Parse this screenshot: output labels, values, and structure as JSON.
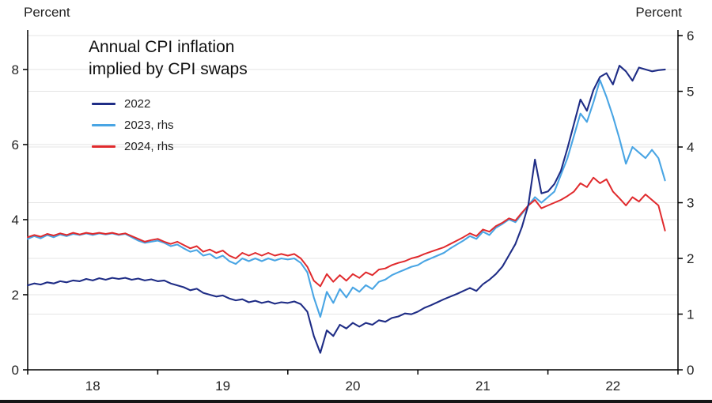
{
  "chart_data": {
    "type": "line",
    "title": "Annual CPI inflation implied by CPI swaps",
    "title_lines": [
      "Annual CPI inflation",
      "implied by CPI swaps"
    ],
    "left_axis": {
      "label": "Percent",
      "min": 0,
      "max": 9.05,
      "ticks": [
        0,
        2,
        4,
        6,
        8
      ]
    },
    "right_axis": {
      "label": "Percent",
      "min": 0,
      "max": 6.1,
      "ticks": [
        0,
        1,
        2,
        3,
        4,
        5,
        6
      ]
    },
    "x_axis": {
      "min": 2018.0,
      "max": 2023.0,
      "ticks": [
        2018,
        2019,
        2020,
        2021,
        2022,
        2023
      ],
      "labels": [
        {
          "text": "18",
          "x": 2018.5
        },
        {
          "text": "19",
          "x": 2019.5
        },
        {
          "text": "20",
          "x": 2020.5
        },
        {
          "text": "21",
          "x": 2021.5
        },
        {
          "text": "22",
          "x": 2022.5
        }
      ]
    },
    "gridlines": {
      "left_values": [
        2,
        4,
        6,
        8
      ],
      "right_values": [
        1,
        2,
        3,
        4,
        5,
        6
      ]
    },
    "x_start": 2018.0,
    "x_step": 0.05,
    "series": [
      {
        "name": "2022",
        "axis": "left",
        "color": "#1f2d86",
        "width": 2.1,
        "z": 3,
        "values": [
          2.25,
          2.3,
          2.27,
          2.33,
          2.3,
          2.36,
          2.33,
          2.38,
          2.36,
          2.42,
          2.38,
          2.44,
          2.4,
          2.45,
          2.42,
          2.45,
          2.4,
          2.43,
          2.38,
          2.41,
          2.36,
          2.38,
          2.3,
          2.25,
          2.2,
          2.12,
          2.16,
          2.05,
          2.0,
          1.95,
          1.98,
          1.9,
          1.85,
          1.88,
          1.8,
          1.84,
          1.78,
          1.82,
          1.76,
          1.8,
          1.78,
          1.82,
          1.75,
          1.55,
          0.9,
          0.45,
          1.05,
          0.9,
          1.2,
          1.1,
          1.25,
          1.15,
          1.25,
          1.2,
          1.32,
          1.28,
          1.38,
          1.42,
          1.5,
          1.48,
          1.55,
          1.65,
          1.72,
          1.8,
          1.88,
          1.95,
          2.02,
          2.1,
          2.18,
          2.1,
          2.28,
          2.4,
          2.55,
          2.75,
          3.05,
          3.35,
          3.8,
          4.4,
          5.6,
          4.7,
          4.75,
          4.95,
          5.3,
          5.9,
          6.55,
          7.2,
          6.9,
          7.45,
          7.8,
          7.9,
          7.6,
          8.1,
          7.95,
          7.7,
          8.05,
          8.0,
          7.95,
          7.98,
          8.0
        ]
      },
      {
        "name": "2023, rhs",
        "axis": "right",
        "color": "#49a5e4",
        "width": 2.1,
        "z": 1,
        "values": [
          2.35,
          2.4,
          2.36,
          2.42,
          2.38,
          2.43,
          2.4,
          2.44,
          2.42,
          2.45,
          2.42,
          2.45,
          2.43,
          2.45,
          2.42,
          2.44,
          2.38,
          2.32,
          2.28,
          2.3,
          2.32,
          2.28,
          2.22,
          2.25,
          2.18,
          2.12,
          2.15,
          2.05,
          2.08,
          2.0,
          2.05,
          1.95,
          1.9,
          2.0,
          1.95,
          2.0,
          1.95,
          2.0,
          1.96,
          2.0,
          1.98,
          2.0,
          1.92,
          1.75,
          1.3,
          0.95,
          1.4,
          1.2,
          1.45,
          1.3,
          1.48,
          1.4,
          1.52,
          1.45,
          1.58,
          1.62,
          1.7,
          1.75,
          1.8,
          1.85,
          1.88,
          1.95,
          2.0,
          2.05,
          2.1,
          2.18,
          2.25,
          2.32,
          2.4,
          2.35,
          2.48,
          2.42,
          2.55,
          2.62,
          2.7,
          2.65,
          2.8,
          2.95,
          3.1,
          3.0,
          3.1,
          3.2,
          3.5,
          3.8,
          4.2,
          4.6,
          4.45,
          4.8,
          5.2,
          4.9,
          4.55,
          4.15,
          3.7,
          4.0,
          3.9,
          3.8,
          3.95,
          3.8,
          3.4
        ]
      },
      {
        "name": "2024, rhs",
        "axis": "right",
        "color": "#e02a2d",
        "width": 2.0,
        "z": 2,
        "values": [
          2.38,
          2.42,
          2.39,
          2.44,
          2.41,
          2.45,
          2.42,
          2.46,
          2.43,
          2.46,
          2.44,
          2.46,
          2.44,
          2.46,
          2.43,
          2.45,
          2.4,
          2.35,
          2.3,
          2.33,
          2.35,
          2.3,
          2.26,
          2.3,
          2.24,
          2.18,
          2.22,
          2.12,
          2.16,
          2.1,
          2.14,
          2.05,
          2.0,
          2.1,
          2.05,
          2.1,
          2.05,
          2.1,
          2.05,
          2.08,
          2.05,
          2.08,
          2.0,
          1.85,
          1.6,
          1.5,
          1.72,
          1.58,
          1.7,
          1.6,
          1.72,
          1.65,
          1.75,
          1.7,
          1.8,
          1.82,
          1.88,
          1.92,
          1.95,
          2.0,
          2.03,
          2.08,
          2.12,
          2.16,
          2.2,
          2.26,
          2.32,
          2.38,
          2.45,
          2.4,
          2.52,
          2.48,
          2.58,
          2.64,
          2.72,
          2.68,
          2.82,
          2.95,
          3.05,
          2.9,
          2.95,
          3.0,
          3.05,
          3.12,
          3.2,
          3.35,
          3.28,
          3.45,
          3.35,
          3.42,
          3.2,
          3.08,
          2.95,
          3.1,
          3.02,
          3.15,
          3.05,
          2.95,
          2.5
        ]
      }
    ],
    "legend_position": "top-left-inside",
    "grid": true
  },
  "style": {
    "grid_color": "#e4e4e4",
    "axis_color": "#000000",
    "tick_label_color": "#222222"
  }
}
